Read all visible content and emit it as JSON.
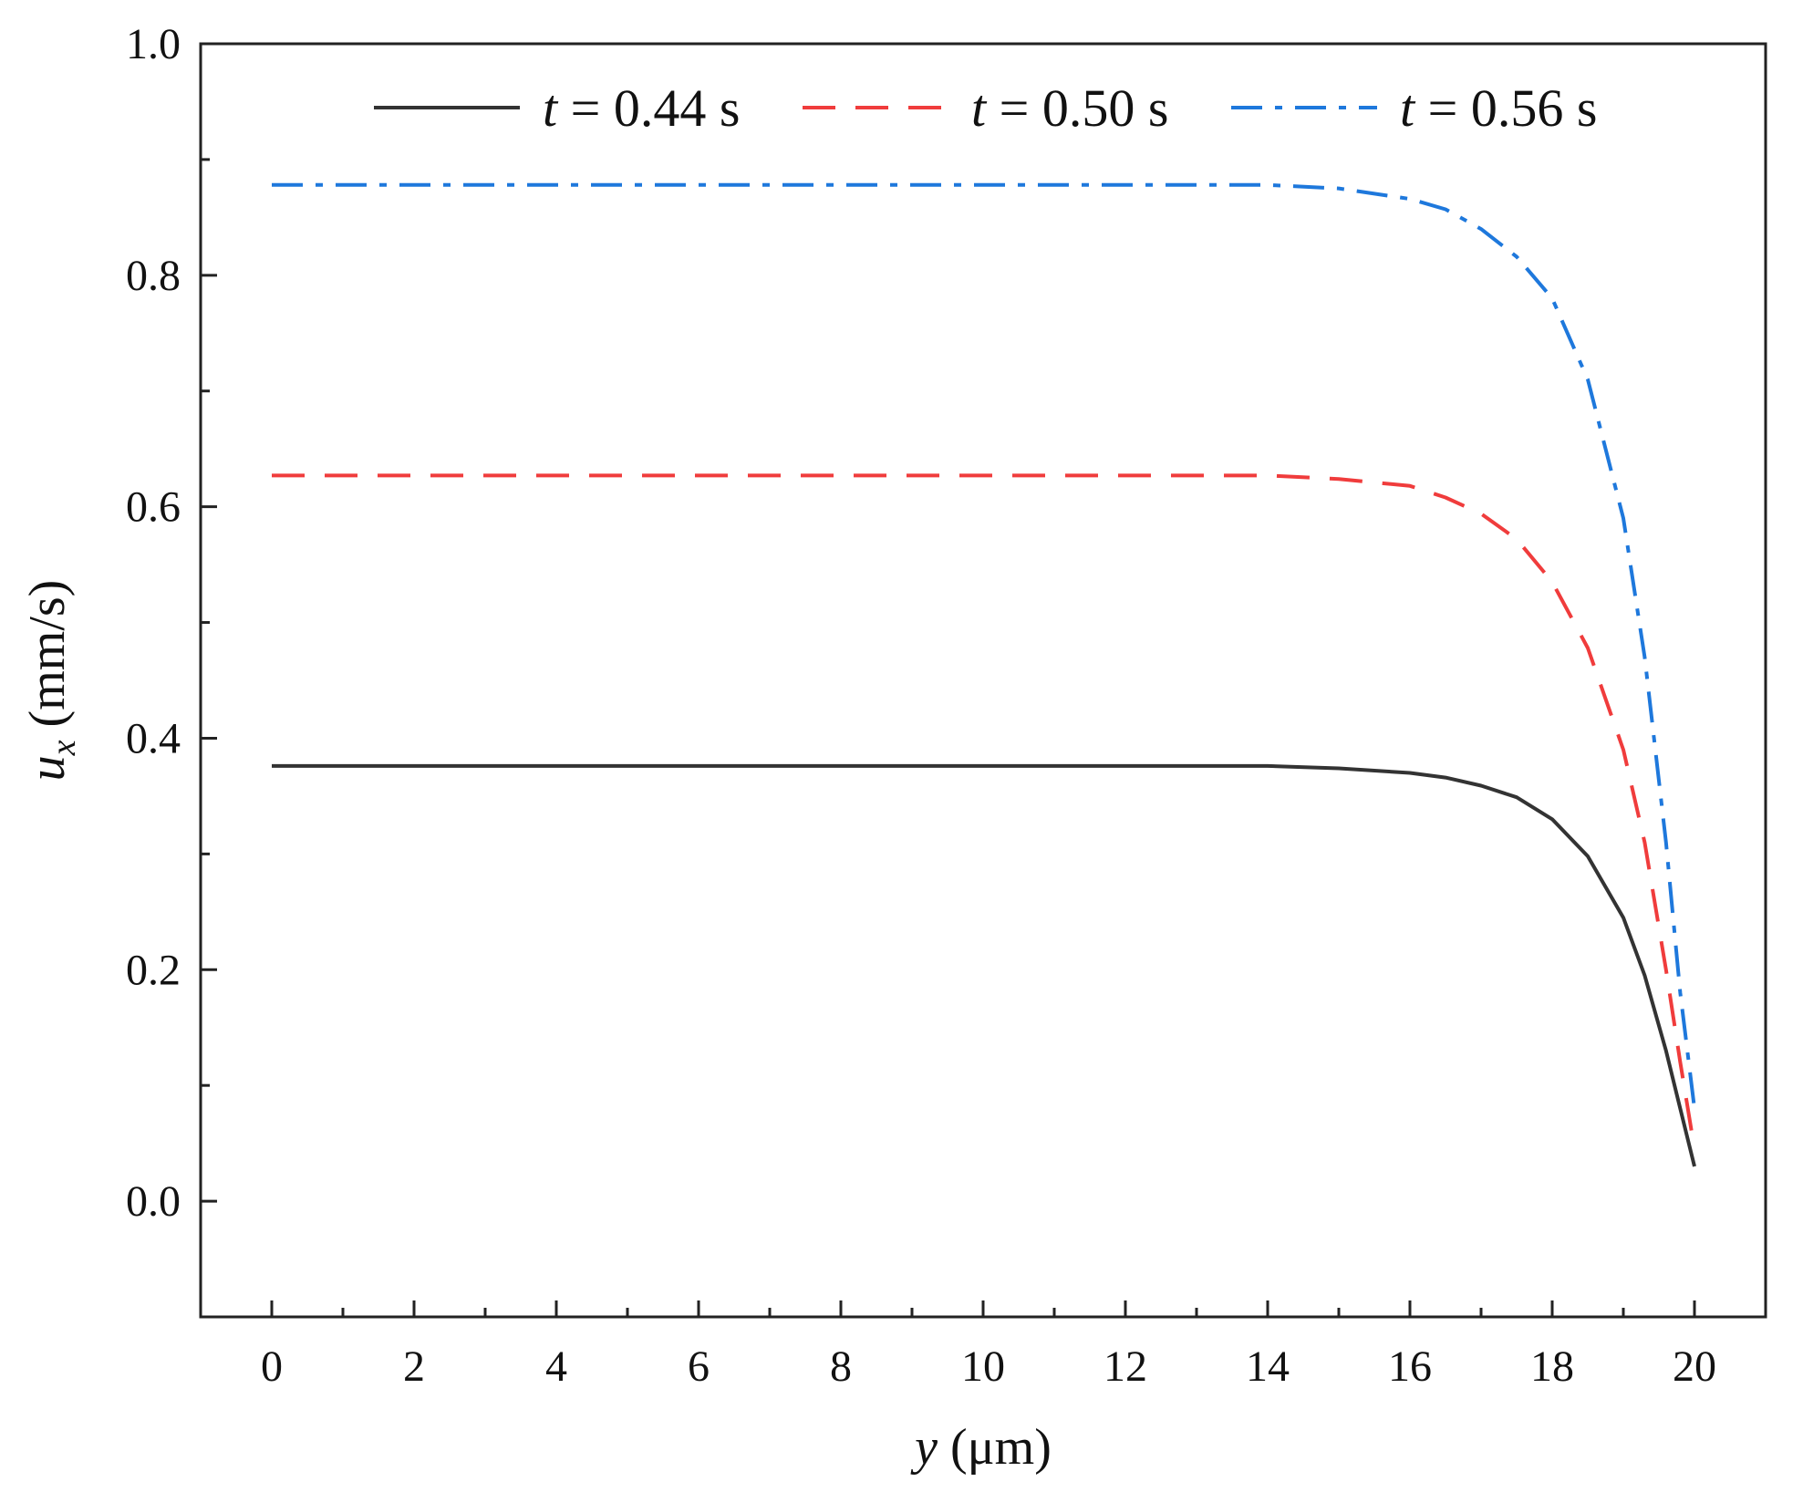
{
  "chart_data": {
    "type": "line",
    "xlabel": {
      "var": "y",
      "unit": " (μm)"
    },
    "ylabel": {
      "var": "u",
      "sub": "x",
      "unit": " (mm/s)"
    },
    "xlim": [
      -1,
      21
    ],
    "ylim": [
      -0.1,
      1.0
    ],
    "xticks": [
      0,
      2,
      4,
      6,
      8,
      10,
      12,
      14,
      16,
      18,
      20
    ],
    "yticks": [
      0.0,
      0.2,
      0.4,
      0.6,
      0.8,
      1.0
    ],
    "xtick_labels": [
      "0",
      "2",
      "4",
      "6",
      "8",
      "10",
      "12",
      "14",
      "16",
      "18",
      "20"
    ],
    "ytick_labels": [
      "0.0",
      "0.2",
      "0.4",
      "0.6",
      "0.8",
      "1.0"
    ],
    "grid": false,
    "legend_position": "top",
    "series": [
      {
        "name": "t = 0.44 s",
        "legend_var": "t",
        "legend_rest": " = 0.44 s",
        "color": "#333333",
        "style": "solid",
        "x": [
          0,
          14,
          15,
          16,
          16.5,
          17,
          17.5,
          18,
          18.5,
          19,
          19.3,
          19.6,
          19.8,
          20
        ],
        "y": [
          0.376,
          0.376,
          0.374,
          0.37,
          0.366,
          0.359,
          0.349,
          0.33,
          0.298,
          0.245,
          0.195,
          0.13,
          0.08,
          0.03
        ]
      },
      {
        "name": "t = 0.50 s",
        "legend_var": "t",
        "legend_rest": " = 0.50 s",
        "color": "#f03c3c",
        "style": "dashed",
        "x": [
          0,
          14,
          15,
          16,
          16.5,
          17,
          17.5,
          18,
          18.5,
          19,
          19.3,
          19.6,
          19.8,
          20
        ],
        "y": [
          0.627,
          0.627,
          0.624,
          0.618,
          0.608,
          0.594,
          0.572,
          0.535,
          0.478,
          0.39,
          0.31,
          0.2,
          0.12,
          0.045
        ]
      },
      {
        "name": "t = 0.56 s",
        "legend_var": "t",
        "legend_rest": " = 0.56 s",
        "color": "#1e78dc",
        "style": "dashdot",
        "x": [
          0,
          14,
          15,
          16,
          16.5,
          17,
          17.5,
          18,
          18.5,
          19,
          19.3,
          19.6,
          19.8,
          20
        ],
        "y": [
          0.878,
          0.878,
          0.875,
          0.866,
          0.857,
          0.84,
          0.816,
          0.78,
          0.71,
          0.59,
          0.47,
          0.31,
          0.18,
          0.08
        ]
      }
    ]
  }
}
